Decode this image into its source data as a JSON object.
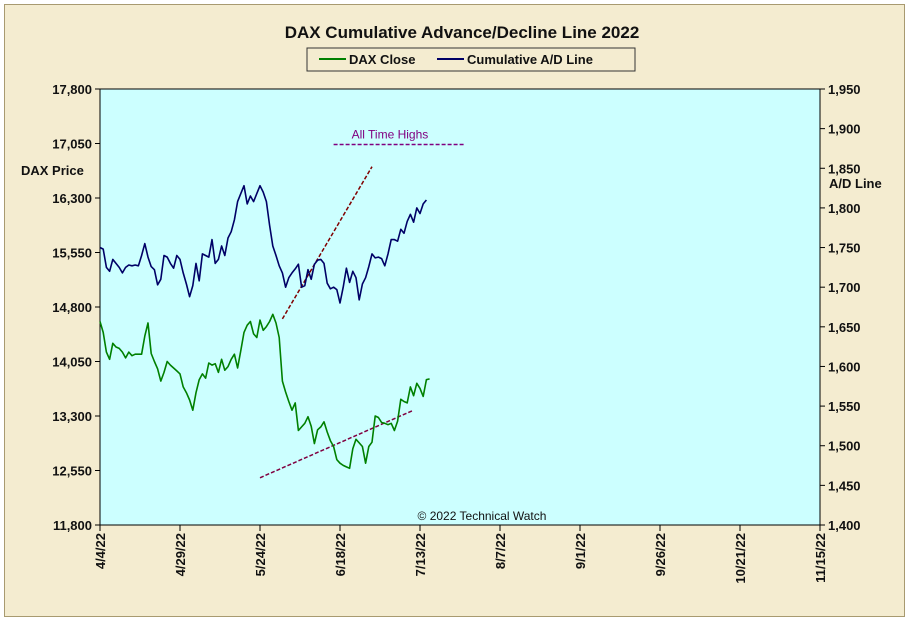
{
  "chart_data": {
    "type": "line",
    "title": "DAX Cumulative Advance/Decline Line 2022",
    "left_axis": {
      "label": "DAX Price",
      "range": [
        11800,
        17800
      ],
      "ticks": [
        "17,800",
        "17,050",
        "16,300",
        "15,550",
        "14,800",
        "14,050",
        "13,300",
        "12,550",
        "11,800"
      ]
    },
    "right_axis": {
      "label": "A/D Line",
      "range": [
        1400,
        1950
      ],
      "ticks": [
        "1,950",
        "1,900",
        "1,850",
        "1,800",
        "1,750",
        "1,700",
        "1,650",
        "1,600",
        "1,550",
        "1,500",
        "1,450",
        "1,400"
      ]
    },
    "x_ticks": [
      "4/4/22",
      "4/29/22",
      "5/24/22",
      "6/18/22",
      "7/13/22",
      "8/7/22",
      "9/1/22",
      "9/26/22",
      "10/21/22",
      "11/15/22"
    ],
    "x_range_days": [
      0,
      225
    ],
    "grid": false,
    "legend_position": "top-center",
    "background": "#ccffff",
    "series": [
      {
        "name": "DAX Close",
        "axis": "left",
        "color": "#008000",
        "points": [
          [
            0,
            14600
          ],
          [
            1,
            14450
          ],
          [
            2,
            14180
          ],
          [
            3,
            14080
          ],
          [
            4,
            14300
          ],
          [
            5,
            14250
          ],
          [
            6,
            14230
          ],
          [
            7,
            14180
          ],
          [
            8,
            14100
          ],
          [
            9,
            14180
          ],
          [
            10,
            14130
          ],
          [
            11,
            14150
          ],
          [
            12,
            14150
          ],
          [
            13,
            14150
          ],
          [
            14,
            14400
          ],
          [
            15,
            14580
          ],
          [
            16,
            14160
          ],
          [
            17,
            14050
          ],
          [
            18,
            13950
          ],
          [
            19,
            13780
          ],
          [
            20,
            13900
          ],
          [
            21,
            14050
          ],
          [
            22,
            14000
          ],
          [
            23,
            13960
          ],
          [
            24,
            13920
          ],
          [
            25,
            13880
          ],
          [
            26,
            13700
          ],
          [
            27,
            13620
          ],
          [
            28,
            13520
          ],
          [
            29,
            13380
          ],
          [
            30,
            13620
          ],
          [
            31,
            13800
          ],
          [
            32,
            13880
          ],
          [
            33,
            13820
          ],
          [
            34,
            14030
          ],
          [
            35,
            14000
          ],
          [
            36,
            14020
          ],
          [
            37,
            13900
          ],
          [
            38,
            14080
          ],
          [
            39,
            13930
          ],
          [
            40,
            13980
          ],
          [
            41,
            14080
          ],
          [
            42,
            14150
          ],
          [
            43,
            13960
          ],
          [
            44,
            14200
          ],
          [
            45,
            14450
          ],
          [
            46,
            14550
          ],
          [
            47,
            14600
          ],
          [
            48,
            14430
          ],
          [
            49,
            14380
          ],
          [
            50,
            14620
          ],
          [
            51,
            14480
          ],
          [
            52,
            14530
          ],
          [
            53,
            14600
          ],
          [
            54,
            14700
          ],
          [
            55,
            14580
          ],
          [
            56,
            14380
          ],
          [
            57,
            13780
          ],
          [
            58,
            13630
          ],
          [
            59,
            13500
          ],
          [
            60,
            13380
          ],
          [
            61,
            13480
          ],
          [
            62,
            13100
          ],
          [
            63,
            13150
          ],
          [
            64,
            13200
          ],
          [
            65,
            13290
          ],
          [
            66,
            13160
          ],
          [
            67,
            12920
          ],
          [
            68,
            13110
          ],
          [
            69,
            13150
          ],
          [
            70,
            13220
          ],
          [
            71,
            13080
          ],
          [
            72,
            12960
          ],
          [
            73,
            12880
          ],
          [
            74,
            12700
          ],
          [
            75,
            12650
          ],
          [
            76,
            12620
          ],
          [
            77,
            12600
          ],
          [
            78,
            12580
          ],
          [
            79,
            12850
          ],
          [
            80,
            12980
          ],
          [
            81,
            12930
          ],
          [
            82,
            12880
          ],
          [
            83,
            12650
          ],
          [
            84,
            12880
          ],
          [
            85,
            12940
          ],
          [
            86,
            13300
          ],
          [
            87,
            13280
          ],
          [
            88,
            13210
          ],
          [
            89,
            13200
          ],
          [
            90,
            13180
          ],
          [
            91,
            13200
          ],
          [
            92,
            13100
          ],
          [
            93,
            13230
          ],
          [
            94,
            13530
          ],
          [
            95,
            13500
          ],
          [
            96,
            13480
          ],
          [
            97,
            13700
          ],
          [
            98,
            13580
          ],
          [
            99,
            13750
          ],
          [
            100,
            13680
          ],
          [
            101,
            13570
          ],
          [
            102,
            13800
          ],
          [
            103,
            13810
          ]
        ]
      },
      {
        "name": "Cumulative A/D Line",
        "axis": "right",
        "color": "#000066",
        "points": [
          [
            0,
            1750
          ],
          [
            1,
            1748
          ],
          [
            2,
            1725
          ],
          [
            3,
            1720
          ],
          [
            4,
            1735
          ],
          [
            5,
            1730
          ],
          [
            6,
            1725
          ],
          [
            7,
            1718
          ],
          [
            8,
            1725
          ],
          [
            9,
            1728
          ],
          [
            10,
            1727
          ],
          [
            11,
            1728
          ],
          [
            12,
            1727
          ],
          [
            13,
            1740
          ],
          [
            14,
            1755
          ],
          [
            15,
            1738
          ],
          [
            16,
            1726
          ],
          [
            17,
            1722
          ],
          [
            18,
            1703
          ],
          [
            19,
            1710
          ],
          [
            20,
            1740
          ],
          [
            21,
            1738
          ],
          [
            22,
            1730
          ],
          [
            23,
            1724
          ],
          [
            24,
            1740
          ],
          [
            25,
            1735
          ],
          [
            26,
            1718
          ],
          [
            27,
            1704
          ],
          [
            28,
            1688
          ],
          [
            29,
            1702
          ],
          [
            30,
            1730
          ],
          [
            31,
            1708
          ],
          [
            32,
            1742
          ],
          [
            33,
            1740
          ],
          [
            34,
            1738
          ],
          [
            35,
            1760
          ],
          [
            36,
            1730
          ],
          [
            37,
            1735
          ],
          [
            38,
            1752
          ],
          [
            39,
            1740
          ],
          [
            40,
            1762
          ],
          [
            41,
            1770
          ],
          [
            42,
            1785
          ],
          [
            43,
            1808
          ],
          [
            44,
            1818
          ],
          [
            45,
            1828
          ],
          [
            46,
            1805
          ],
          [
            47,
            1815
          ],
          [
            48,
            1808
          ],
          [
            49,
            1818
          ],
          [
            50,
            1828
          ],
          [
            51,
            1820
          ],
          [
            52,
            1808
          ],
          [
            53,
            1778
          ],
          [
            54,
            1752
          ],
          [
            55,
            1740
          ],
          [
            56,
            1727
          ],
          [
            57,
            1718
          ],
          [
            58,
            1700
          ],
          [
            59,
            1712
          ],
          [
            60,
            1718
          ],
          [
            61,
            1723
          ],
          [
            62,
            1729
          ],
          [
            63,
            1700
          ],
          [
            64,
            1702
          ],
          [
            65,
            1722
          ],
          [
            66,
            1710
          ],
          [
            67,
            1729
          ],
          [
            68,
            1734
          ],
          [
            69,
            1735
          ],
          [
            70,
            1730
          ],
          [
            71,
            1705
          ],
          [
            72,
            1698
          ],
          [
            73,
            1700
          ],
          [
            74,
            1697
          ],
          [
            75,
            1680
          ],
          [
            76,
            1700
          ],
          [
            77,
            1724
          ],
          [
            78,
            1706
          ],
          [
            79,
            1720
          ],
          [
            80,
            1712
          ],
          [
            81,
            1684
          ],
          [
            82,
            1704
          ],
          [
            83,
            1712
          ],
          [
            84,
            1726
          ],
          [
            85,
            1742
          ],
          [
            86,
            1737
          ],
          [
            87,
            1738
          ],
          [
            88,
            1736
          ],
          [
            89,
            1727
          ],
          [
            90,
            1742
          ],
          [
            91,
            1760
          ],
          [
            92,
            1760
          ],
          [
            93,
            1758
          ],
          [
            94,
            1773
          ],
          [
            95,
            1768
          ],
          [
            96,
            1783
          ],
          [
            97,
            1792
          ],
          [
            98,
            1782
          ],
          [
            99,
            1800
          ],
          [
            100,
            1793
          ],
          [
            101,
            1805
          ],
          [
            102,
            1810
          ]
        ]
      }
    ],
    "annotations": {
      "all_time_highs": {
        "text": "All Time Highs",
        "color": "#800080",
        "ad_value": 1880,
        "x_from": 73,
        "x_to": 114
      },
      "ad_trendline": {
        "color": "#800000",
        "points": [
          [
            57,
            1660
          ],
          [
            85,
            1852
          ]
        ]
      },
      "dax_trendline": {
        "color": "#800040",
        "points": [
          [
            50,
            12450
          ],
          [
            98,
            13380
          ]
        ]
      }
    },
    "copyright": "© 2022 Technical Watch"
  }
}
